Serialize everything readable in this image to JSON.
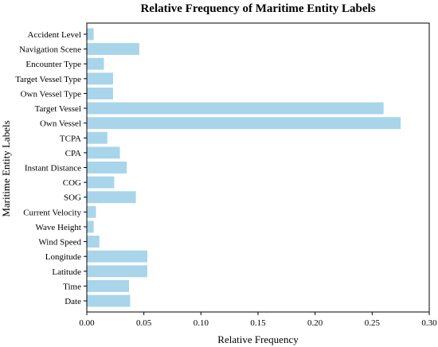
{
  "chart_data": {
    "type": "bar",
    "orientation": "horizontal",
    "title": "Relative Frequency of Maritime Entity Labels",
    "xlabel": "Relative Frequency",
    "ylabel": "Maritime Entity Labels",
    "xlim": [
      0,
      0.3
    ],
    "x_ticks": [
      "0.00",
      "0.05",
      "0.10",
      "0.15",
      "0.20",
      "0.25",
      "0.30"
    ],
    "bar_color": "#a8d5ea",
    "grid": false,
    "categories": [
      "Accident Level",
      "Navigation Scene",
      "Encounter Type",
      "Target Vessel Type",
      "Own Vessel Type",
      "Target Vessel",
      "Own Vessel",
      "TCPA",
      "CPA",
      "Instant Distance",
      "COG",
      "SOG",
      "Current Velocity",
      "Wave Height",
      "Wind Speed",
      "Longitude",
      "Latitude",
      "Time",
      "Date"
    ],
    "values": [
      0.006,
      0.046,
      0.015,
      0.023,
      0.023,
      0.26,
      0.275,
      0.018,
      0.029,
      0.035,
      0.024,
      0.043,
      0.008,
      0.006,
      0.011,
      0.053,
      0.053,
      0.037,
      0.038
    ]
  }
}
